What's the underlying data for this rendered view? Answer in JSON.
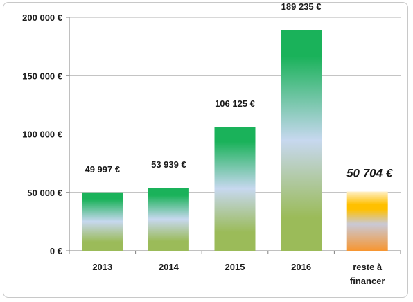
{
  "chart_data": {
    "type": "bar",
    "categories": [
      "2013",
      "2014",
      "2015",
      "2016",
      "reste à\nfinancer"
    ],
    "values": [
      49997,
      53939,
      106125,
      189235,
      50704
    ],
    "data_labels": [
      "49 997 €",
      "53 939 €",
      "106 125 €",
      "189 235 €",
      "50 704 €"
    ],
    "y_ticks": [
      {
        "value": 0,
        "label": "0 €"
      },
      {
        "value": 50000,
        "label": "50 000 €"
      },
      {
        "value": 100000,
        "label": "100 000 €"
      },
      {
        "value": 150000,
        "label": "150 000 €"
      },
      {
        "value": 200000,
        "label": "200 000 €"
      }
    ],
    "ylim": [
      0,
      200000
    ],
    "grid": true,
    "title": "",
    "xlabel": "",
    "ylabel": "",
    "colors": {
      "green_top": "#1ab25a",
      "green_mid": "#c7d8ef",
      "green_bottom": "#9bbb59",
      "orange_top": "#fff0c8",
      "orange_band": "#ffc000",
      "orange_mid": "#c9c9d6",
      "orange_bottom": "#f79631",
      "grid": "#b0b0b0",
      "text": "#1a1a1a"
    }
  }
}
